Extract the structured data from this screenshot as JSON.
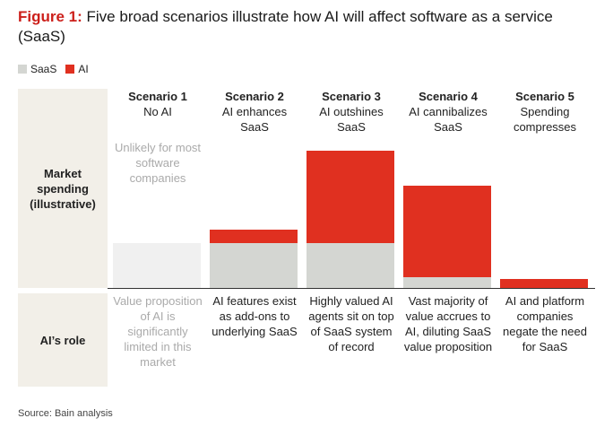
{
  "title": {
    "prefix": "Figure 1:",
    "text": " Five broad scenarios illustrate how AI will affect software as a service (SaaS)"
  },
  "legend": [
    {
      "label": "SaaS",
      "color": "#d4d6d2"
    },
    {
      "label": "AI",
      "color": "#e03020"
    }
  ],
  "side_labels": {
    "market": "Market spending (illustrative)",
    "role": "AI’s role"
  },
  "colors": {
    "saas": "#d4d6d2",
    "ai": "#e03020",
    "faded": "#f0f0f0",
    "side_box": "#f2efe8"
  },
  "scenarios": [
    {
      "name": "Scenario 1",
      "subtitle": "No AI",
      "role": "Value proposition of AI is significantly limited in this market",
      "faded": true
    },
    {
      "name": "Scenario 2",
      "subtitle": "AI enhances SaaS",
      "role": "AI features exist as add-ons to underlying SaaS",
      "faded": false
    },
    {
      "name": "Scenario 3",
      "subtitle": "AI outshines SaaS",
      "role": "Highly valued AI agents sit on top of SaaS system of record",
      "faded": false
    },
    {
      "name": "Scenario 4",
      "subtitle": "AI cannibalizes SaaS",
      "role": "Vast majority of value accrues to AI, diluting SaaS value proposition",
      "faded": false
    },
    {
      "name": "Scenario 5",
      "subtitle": "Spending compresses",
      "role": "AI and platform companies negate the need for SaaS",
      "faded": false
    }
  ],
  "unlikely_note": "Unlikely for most software companies",
  "source": "Source: Bain analysis",
  "chart_data": {
    "type": "bar",
    "stacked": true,
    "title": "Five broad scenarios illustrate how AI will affect software as a service (SaaS)",
    "ylabel": "Market spending (illustrative)",
    "categories": [
      "Scenario 1",
      "Scenario 2",
      "Scenario 3",
      "Scenario 4",
      "Scenario 5"
    ],
    "series": [
      {
        "name": "SaaS",
        "values": [
          50,
          50,
          50,
          12,
          0
        ]
      },
      {
        "name": "AI",
        "values": [
          0,
          15,
          103,
          102,
          10
        ]
      }
    ],
    "ylim": [
      0,
      160
    ],
    "note": "Scenario 1 shown faded (unlikely)"
  }
}
